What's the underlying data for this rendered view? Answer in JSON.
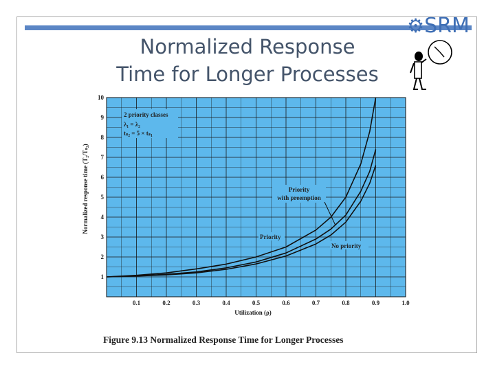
{
  "slide": {
    "title_line1": "Normalized Response",
    "title_line2": "Time for Longer Processes",
    "logo": "SRM",
    "caption": "Figure 9.13 Normalized Response Time for Longer Processes"
  },
  "colors": {
    "plot_background": "#5db8ec",
    "grid": "#1a1a1a",
    "curve": "#111111",
    "title": "#44546a",
    "accent_bar": "#5b86c5"
  },
  "chart_data": {
    "type": "line",
    "xlabel": "Utilization (ρ)",
    "ylabel": "Normalized response time (T₂/Tₛ₂)",
    "xlim": [
      0,
      1.0
    ],
    "ylim": [
      0,
      10
    ],
    "x_ticks": [
      "0.1",
      "0.2",
      "0.3",
      "0.4",
      "0.5",
      "0.6",
      "0.7",
      "0.8",
      "0.9",
      "1.0"
    ],
    "y_ticks": [
      "1",
      "2",
      "3",
      "4",
      "5",
      "6",
      "7",
      "8",
      "9",
      "10"
    ],
    "grid": true,
    "legend_box": {
      "line1": "2 priority classes",
      "line2": "λ₁ = λ₂",
      "line3": "tₛ₂ = 5 × tₛ₁"
    },
    "series": [
      {
        "name": "Priority",
        "x": [
          0.0,
          0.1,
          0.2,
          0.3,
          0.4,
          0.5,
          0.6,
          0.7,
          0.75,
          0.8,
          0.85,
          0.88,
          0.9
        ],
        "y": [
          1.0,
          1.08,
          1.2,
          1.4,
          1.64,
          2.0,
          2.5,
          3.35,
          4.0,
          5.0,
          6.67,
          8.3,
          10.0
        ]
      },
      {
        "name": "Priority with preemption",
        "x": [
          0.0,
          0.1,
          0.2,
          0.3,
          0.4,
          0.5,
          0.6,
          0.7,
          0.75,
          0.8,
          0.85,
          0.88,
          0.9
        ],
        "y": [
          1.0,
          1.05,
          1.13,
          1.25,
          1.45,
          1.75,
          2.2,
          2.9,
          3.4,
          4.1,
          5.3,
          6.3,
          7.4
        ]
      },
      {
        "name": "No priority",
        "x": [
          0.0,
          0.1,
          0.2,
          0.3,
          0.4,
          0.5,
          0.6,
          0.7,
          0.75,
          0.8,
          0.85,
          0.88,
          0.9
        ],
        "y": [
          1.0,
          1.04,
          1.1,
          1.2,
          1.38,
          1.65,
          2.05,
          2.65,
          3.1,
          3.75,
          4.8,
          5.7,
          6.6
        ]
      }
    ]
  }
}
